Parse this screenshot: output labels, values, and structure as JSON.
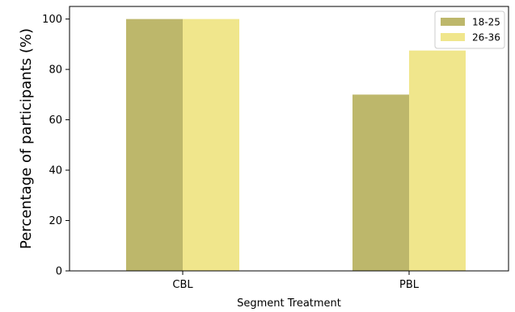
{
  "chart_data": {
    "type": "bar",
    "categories": [
      "CBL",
      "PBL"
    ],
    "series": [
      {
        "name": "18-25",
        "values": [
          100,
          70
        ],
        "color": "#bdb76b"
      },
      {
        "name": "26-36",
        "values": [
          100,
          87.5
        ],
        "color": "#f0e68c"
      }
    ],
    "xlabel": "Segment Treatment",
    "ylabel": "Percentage of participants (%)",
    "ylim": [
      0,
      105
    ],
    "yticks": [
      0,
      20,
      40,
      60,
      80,
      100
    ],
    "grid": false,
    "legend_position": "top-right"
  }
}
